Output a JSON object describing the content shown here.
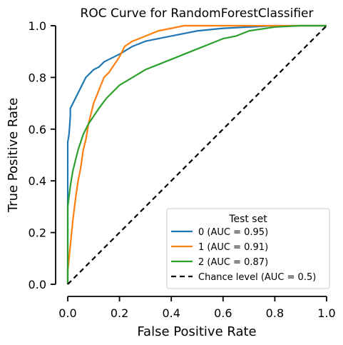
{
  "chart_data": {
    "type": "line",
    "title": "ROC Curve for RandomForestClassifier",
    "xlabel": "False Positive Rate",
    "ylabel": "True Positive Rate",
    "xlim": [
      0,
      1
    ],
    "ylim": [
      0,
      1
    ],
    "xticks": [
      "0.0",
      "0.2",
      "0.4",
      "0.6",
      "0.8",
      "1.0"
    ],
    "yticks": [
      "0.0",
      "0.2",
      "0.4",
      "0.6",
      "0.8",
      "1.0"
    ],
    "grid": false,
    "legend": {
      "title": "Test set",
      "placement": "lower-right"
    },
    "series": [
      {
        "name": "0 (AUC = 0.95)",
        "color": "#1f77b4",
        "x": [
          0.0,
          0.0,
          0.005,
          0.01,
          0.01,
          0.02,
          0.03,
          0.04,
          0.05,
          0.06,
          0.07,
          0.08,
          0.1,
          0.12,
          0.14,
          0.16,
          0.18,
          0.2,
          0.25,
          0.3,
          0.4,
          0.5,
          0.6,
          0.7,
          0.8,
          0.9,
          1.0
        ],
        "y": [
          0.0,
          0.55,
          0.58,
          0.65,
          0.68,
          0.7,
          0.72,
          0.74,
          0.76,
          0.78,
          0.8,
          0.81,
          0.83,
          0.84,
          0.86,
          0.87,
          0.88,
          0.89,
          0.92,
          0.94,
          0.96,
          0.98,
          0.99,
          0.995,
          1.0,
          1.0,
          1.0
        ]
      },
      {
        "name": "1 (AUC = 0.91)",
        "color": "#ff7f0e",
        "x": [
          0.0,
          0.0,
          0.01,
          0.02,
          0.03,
          0.04,
          0.05,
          0.06,
          0.07,
          0.08,
          0.09,
          0.1,
          0.12,
          0.14,
          0.16,
          0.18,
          0.2,
          0.22,
          0.25,
          0.3,
          0.35,
          0.4,
          0.45,
          0.5,
          0.6,
          0.7,
          0.8,
          1.0
        ],
        "y": [
          0.0,
          0.05,
          0.15,
          0.25,
          0.33,
          0.4,
          0.45,
          0.52,
          0.56,
          0.62,
          0.66,
          0.7,
          0.75,
          0.8,
          0.82,
          0.85,
          0.88,
          0.92,
          0.94,
          0.96,
          0.98,
          0.99,
          1.0,
          1.0,
          1.0,
          1.0,
          1.0,
          1.0
        ]
      },
      {
        "name": "2 (AUC = 0.87)",
        "color": "#2ca02c",
        "x": [
          0.0,
          0.0,
          0.01,
          0.02,
          0.03,
          0.04,
          0.05,
          0.06,
          0.08,
          0.1,
          0.12,
          0.15,
          0.18,
          0.2,
          0.25,
          0.3,
          0.35,
          0.4,
          0.45,
          0.5,
          0.55,
          0.6,
          0.65,
          0.7,
          0.8,
          0.9,
          1.0
        ],
        "y": [
          0.0,
          0.3,
          0.38,
          0.44,
          0.48,
          0.52,
          0.55,
          0.58,
          0.62,
          0.65,
          0.68,
          0.72,
          0.75,
          0.77,
          0.8,
          0.83,
          0.85,
          0.87,
          0.89,
          0.91,
          0.93,
          0.95,
          0.96,
          0.98,
          0.995,
          1.0,
          1.0
        ]
      },
      {
        "name": "Chance level (AUC = 0.5)",
        "color": "#000000",
        "dashed": true,
        "x": [
          0.0,
          1.0
        ],
        "y": [
          0.0,
          1.0
        ]
      }
    ]
  }
}
